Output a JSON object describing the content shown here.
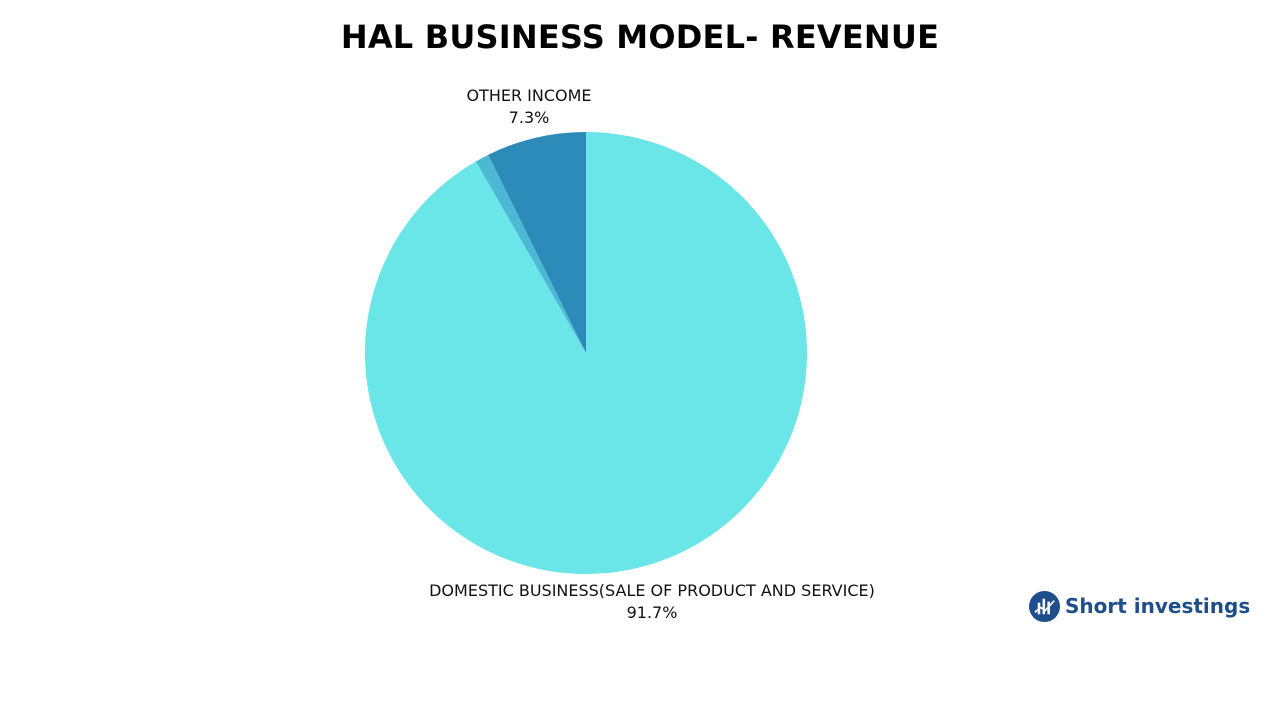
{
  "chart_data": {
    "type": "pie",
    "title": "HAL BUSINESS MODEL- REVENUE",
    "slices": [
      {
        "label": "DOMESTIC BUSINESS(SALE OF PRODUCT AND SERVICE)",
        "value_label": "91.7%",
        "value": 91.7,
        "color": "#6ae5e8"
      },
      {
        "label": "",
        "value_label": "",
        "value": 1.0,
        "color": "#4bb9d4"
      },
      {
        "label": "OTHER INCOME",
        "value_label": "7.3%",
        "value": 7.3,
        "color": "#2c8bb9"
      }
    ],
    "start_angle_deg": 0,
    "direction": "clockwise"
  },
  "brand": {
    "name": "Short investings",
    "color": "#1f4e8c",
    "icon": "chart-logo-icon"
  }
}
